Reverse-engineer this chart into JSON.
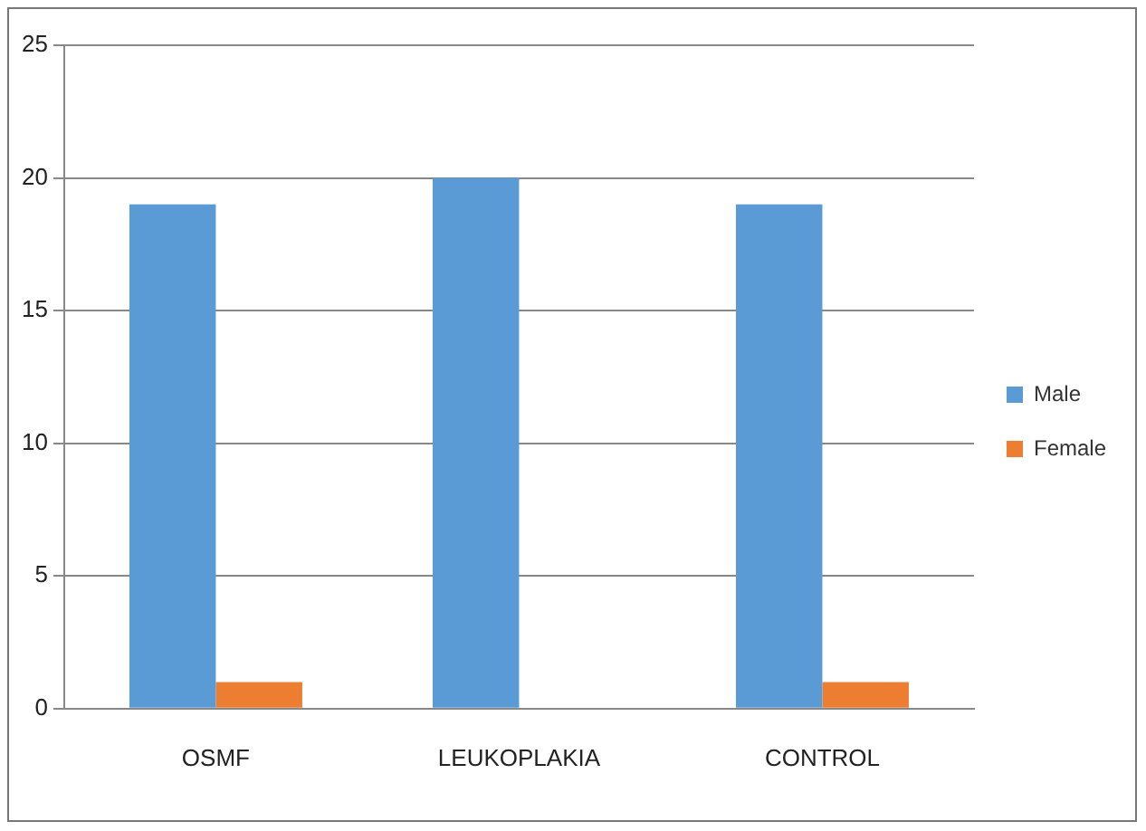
{
  "chart_data": {
    "type": "bar",
    "categories": [
      "OSMF",
      "LEUKOPLAKIA",
      "CONTROL"
    ],
    "series": [
      {
        "name": "Male",
        "color": "#5b9bd5",
        "values": [
          19,
          20,
          19
        ]
      },
      {
        "name": "Female",
        "color": "#ed7d31",
        "values": [
          1,
          0,
          1
        ]
      }
    ],
    "ylim": [
      0,
      25
    ],
    "yticks": [
      0,
      5,
      10,
      15,
      20,
      25
    ],
    "grid": "y",
    "legend": "right"
  }
}
